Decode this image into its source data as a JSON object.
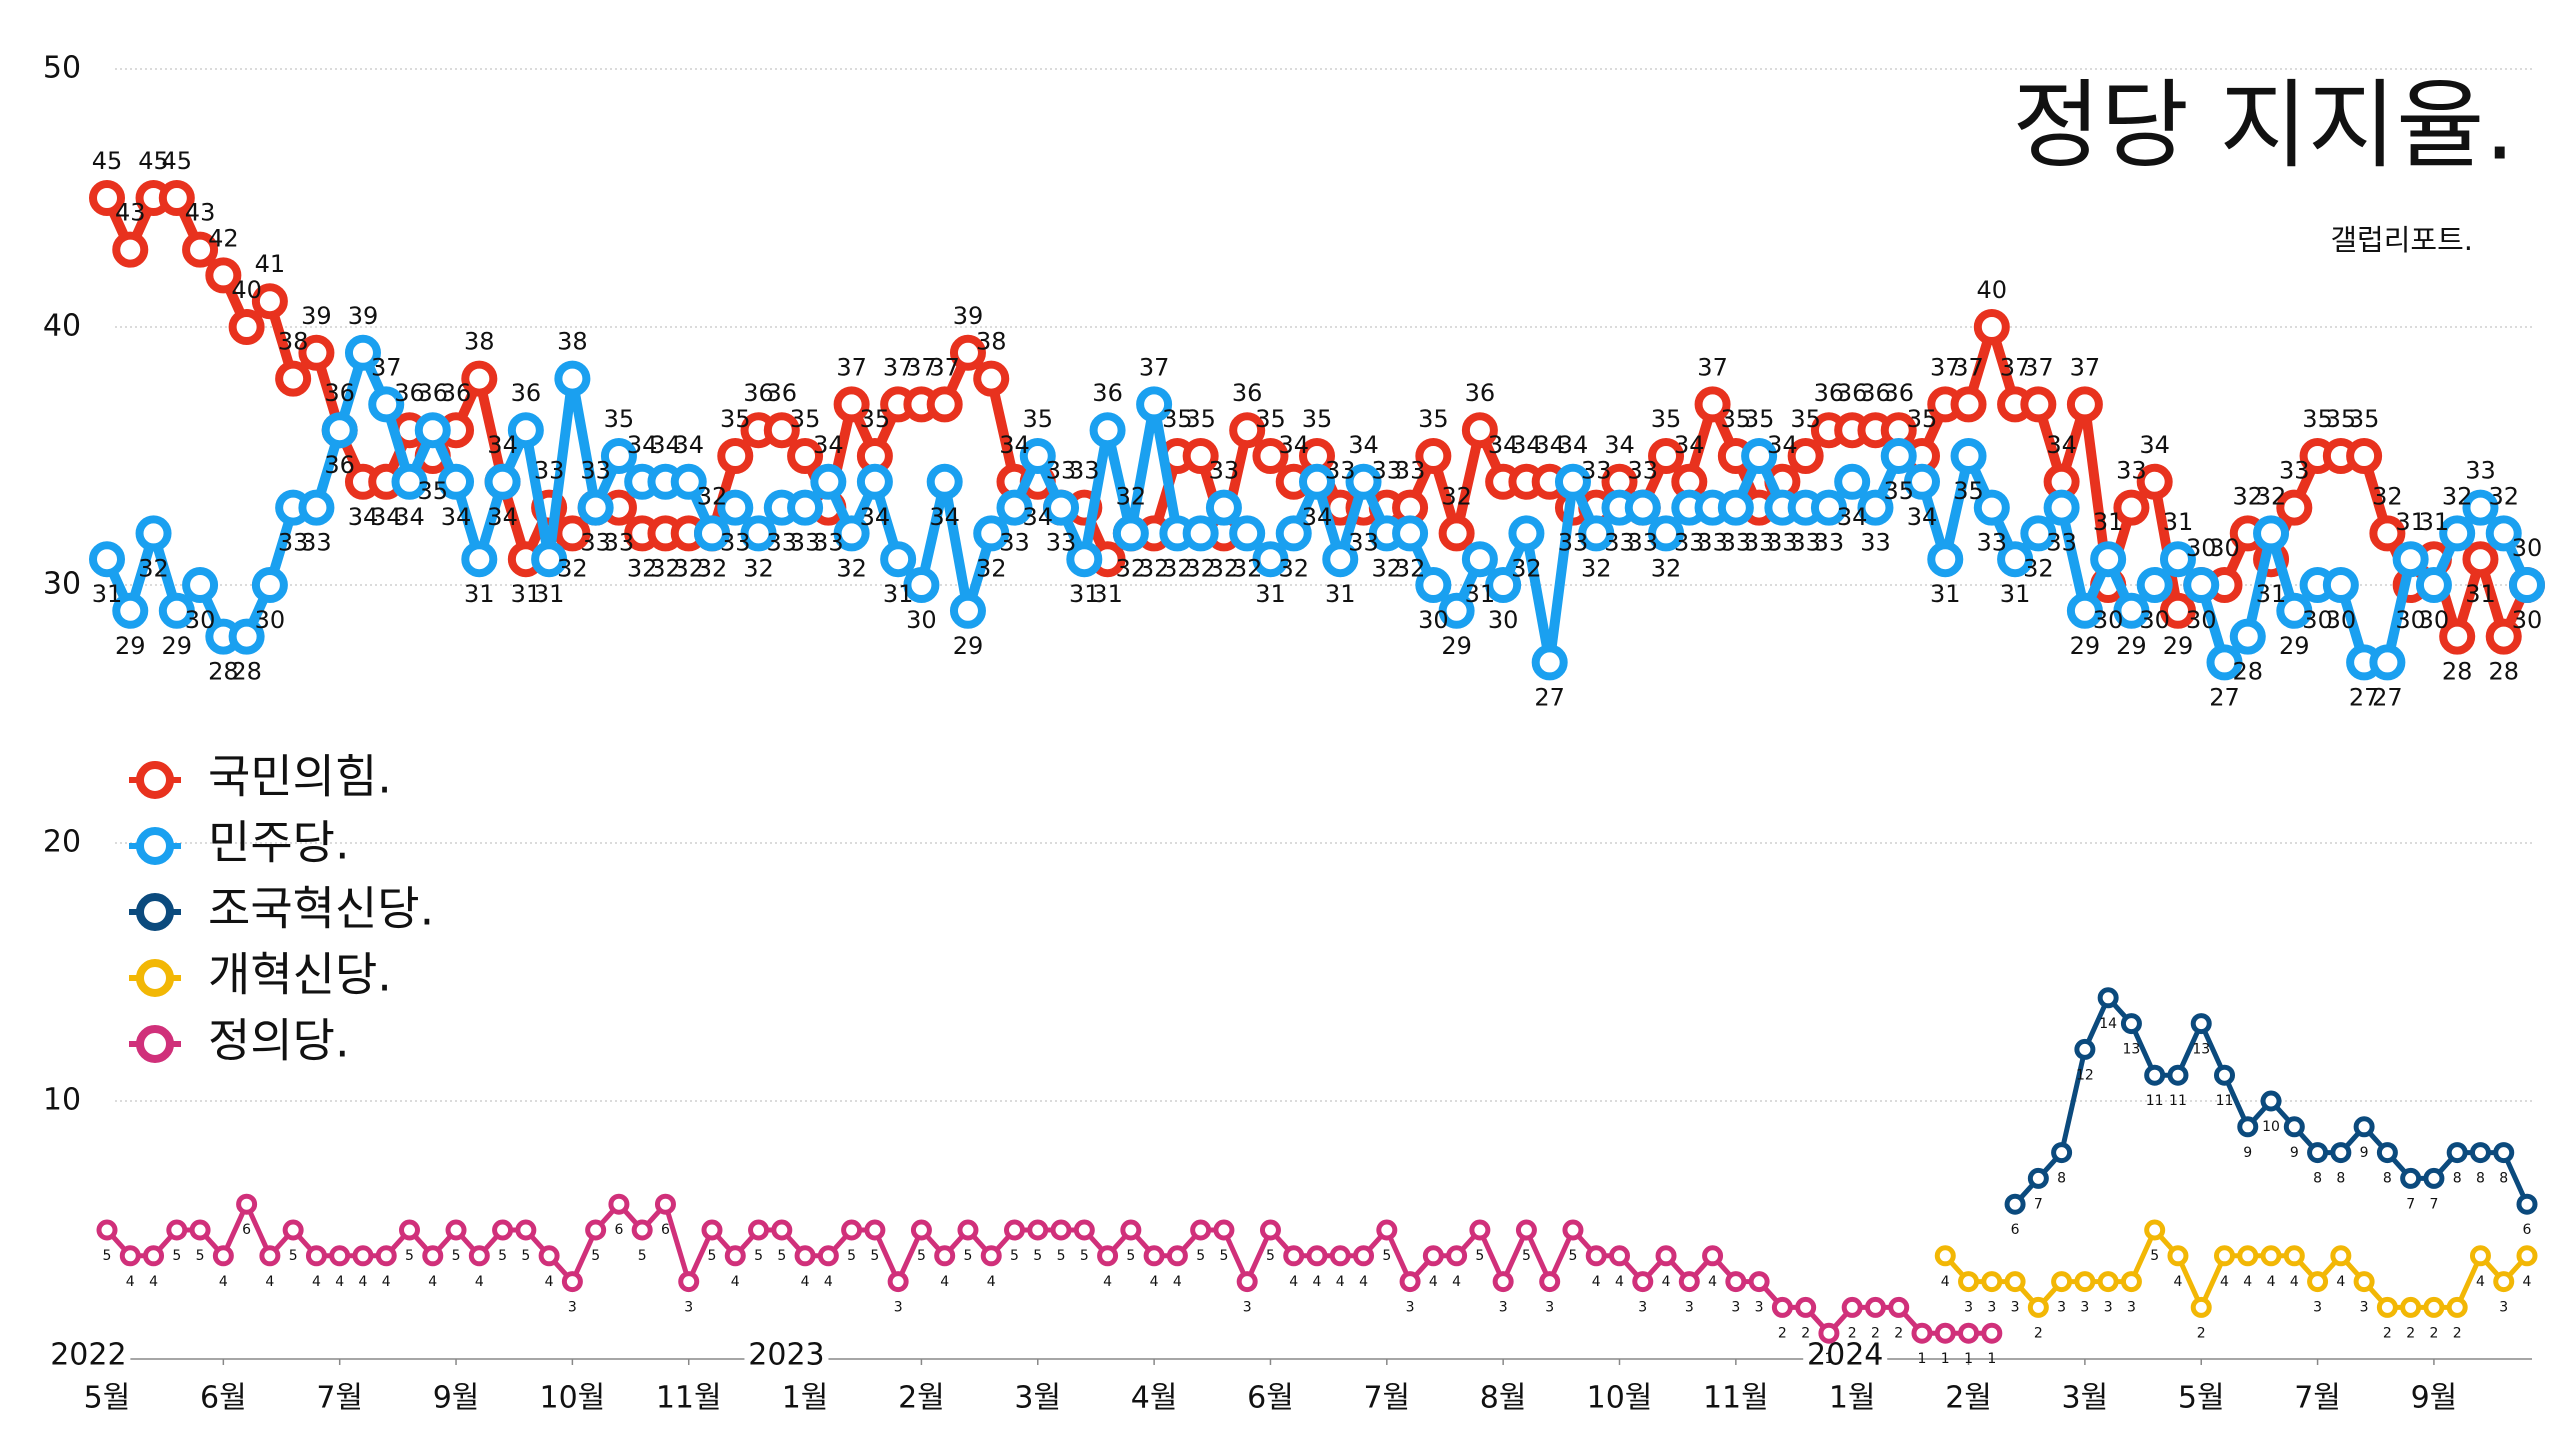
{
  "chart_data": {
    "type": "line",
    "title": "정당 지지율.",
    "subtitle": "갤럽리포트.",
    "ylim": [
      0,
      50
    ],
    "yticks": [
      10,
      20,
      30,
      40,
      50
    ],
    "grid": true,
    "xlim": [
      0,
      104
    ],
    "xticks": [
      {
        "value": 0,
        "label": "5월"
      },
      {
        "value": 5,
        "label": "6월"
      },
      {
        "value": 10,
        "label": "7월"
      },
      {
        "value": 15,
        "label": "9월"
      },
      {
        "value": 20,
        "label": "10월"
      },
      {
        "value": 25,
        "label": "11월"
      },
      {
        "value": 30,
        "label": "1월"
      },
      {
        "value": 35,
        "label": "2월"
      },
      {
        "value": 40,
        "label": "3월"
      },
      {
        "value": 45,
        "label": "4월"
      },
      {
        "value": 50,
        "label": "6월"
      },
      {
        "value": 55,
        "label": "7월"
      },
      {
        "value": 60,
        "label": "8월"
      },
      {
        "value": 65,
        "label": "10월"
      },
      {
        "value": 70,
        "label": "11월"
      },
      {
        "value": 75,
        "label": "1월"
      },
      {
        "value": 80,
        "label": "2월"
      },
      {
        "value": 85,
        "label": "3월"
      },
      {
        "value": 90,
        "label": "5월"
      },
      {
        "value": 95,
        "label": "7월"
      },
      {
        "value": 100,
        "label": "9월"
      }
    ],
    "year_labels": [
      {
        "value": -0.8,
        "label": "2022"
      },
      {
        "value": 29.2,
        "label": "2023"
      },
      {
        "value": 74.7,
        "label": "2024"
      }
    ],
    "legend": "left",
    "series": [
      {
        "name": "국민의힘.",
        "color": "#e8321e",
        "values": [
          45,
          43,
          45,
          45,
          43,
          42,
          40,
          41,
          38,
          39,
          36,
          34,
          34,
          36,
          35,
          36,
          38,
          34,
          31,
          33,
          32,
          33,
          33,
          32,
          32,
          32,
          32,
          35,
          36,
          36,
          35,
          33,
          37,
          35,
          37,
          37,
          37,
          39,
          38,
          34,
          34,
          33,
          33,
          31,
          32,
          32,
          35,
          35,
          32,
          36,
          35,
          34,
          35,
          33,
          33,
          33,
          33,
          35,
          32,
          36,
          34,
          34,
          34,
          33,
          33,
          34,
          33,
          35,
          34,
          37,
          35,
          33,
          34,
          35,
          36,
          36,
          36,
          36,
          35,
          37,
          37,
          40,
          37,
          37,
          34,
          37,
          30,
          33,
          34,
          29,
          30,
          30,
          32,
          31,
          33,
          35,
          35,
          35,
          32,
          30,
          31,
          28,
          31,
          28,
          30
        ]
      },
      {
        "name": "민주당.",
        "color": "#1aa0f0",
        "values": [
          31,
          29,
          32,
          29,
          30,
          28,
          28,
          30,
          33,
          33,
          36,
          39,
          37,
          34,
          36,
          34,
          31,
          34,
          36,
          31,
          38,
          33,
          35,
          34,
          34,
          34,
          32,
          33,
          32,
          33,
          33,
          34,
          32,
          34,
          31,
          30,
          34,
          29,
          32,
          33,
          35,
          33,
          31,
          36,
          32,
          37,
          32,
          32,
          33,
          32,
          31,
          32,
          34,
          31,
          34,
          32,
          32,
          30,
          29,
          31,
          30,
          32,
          27,
          34,
          32,
          33,
          33,
          32,
          33,
          33,
          33,
          35,
          33,
          33,
          33,
          34,
          33,
          35,
          34,
          31,
          35,
          33,
          31,
          32,
          33,
          29,
          31,
          29,
          30,
          31,
          30,
          27,
          28,
          32,
          29,
          30,
          30,
          27,
          27,
          31,
          30,
          32,
          33,
          32,
          30
        ]
      },
      {
        "name": "조국혁신당.",
        "color": "#0b4a7d",
        "values": [
          null,
          null,
          null,
          null,
          null,
          null,
          null,
          null,
          null,
          null,
          null,
          null,
          null,
          null,
          null,
          null,
          null,
          null,
          null,
          null,
          null,
          null,
          null,
          null,
          null,
          null,
          null,
          null,
          null,
          null,
          null,
          null,
          null,
          null,
          null,
          null,
          null,
          null,
          null,
          null,
          null,
          null,
          null,
          null,
          null,
          null,
          null,
          null,
          null,
          null,
          null,
          null,
          null,
          null,
          null,
          null,
          null,
          null,
          null,
          null,
          null,
          null,
          null,
          null,
          null,
          null,
          null,
          null,
          null,
          null,
          null,
          null,
          null,
          null,
          null,
          null,
          null,
          null,
          null,
          null,
          null,
          null,
          6,
          7,
          8,
          12,
          14,
          13,
          11,
          11,
          13,
          11,
          9,
          10,
          9,
          8,
          8,
          9,
          8,
          7,
          7,
          8,
          8,
          8,
          6
        ]
      },
      {
        "name": "개혁신당.",
        "color": "#f2b705",
        "values": [
          null,
          null,
          null,
          null,
          null,
          null,
          null,
          null,
          null,
          null,
          null,
          null,
          null,
          null,
          null,
          null,
          null,
          null,
          null,
          null,
          null,
          null,
          null,
          null,
          null,
          null,
          null,
          null,
          null,
          null,
          null,
          null,
          null,
          null,
          null,
          null,
          null,
          null,
          null,
          null,
          null,
          null,
          null,
          null,
          null,
          null,
          null,
          null,
          null,
          null,
          null,
          null,
          null,
          null,
          null,
          null,
          null,
          null,
          null,
          null,
          null,
          null,
          null,
          null,
          null,
          null,
          null,
          null,
          null,
          null,
          null,
          null,
          null,
          null,
          null,
          null,
          null,
          null,
          null,
          4,
          3,
          3,
          3,
          2,
          3,
          3,
          3,
          3,
          5,
          4,
          2,
          4,
          4,
          4,
          4,
          3,
          4,
          3,
          2,
          2,
          2,
          2,
          4,
          3,
          4
        ]
      },
      {
        "name": "정의당.",
        "color": "#d0307a",
        "values": [
          5,
          4,
          4,
          5,
          5,
          4,
          6,
          4,
          5,
          4,
          4,
          4,
          4,
          5,
          4,
          5,
          4,
          5,
          5,
          4,
          3,
          5,
          6,
          5,
          6,
          3,
          5,
          4,
          5,
          5,
          4,
          4,
          5,
          5,
          3,
          5,
          4,
          5,
          4,
          5,
          5,
          5,
          5,
          4,
          5,
          4,
          4,
          5,
          5,
          3,
          5,
          4,
          4,
          4,
          4,
          5,
          3,
          4,
          4,
          5,
          3,
          5,
          3,
          5,
          4,
          4,
          3,
          4,
          3,
          4,
          3,
          3,
          2,
          2,
          1,
          2,
          2,
          2,
          1,
          1,
          1,
          1,
          null,
          null,
          null,
          null,
          null,
          null,
          null,
          null,
          null,
          null,
          null,
          null,
          null,
          null,
          null,
          null,
          null,
          null,
          null,
          null,
          null,
          null,
          null
        ]
      }
    ]
  }
}
